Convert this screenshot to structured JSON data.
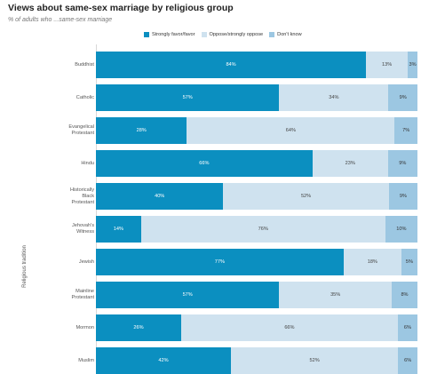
{
  "chart_data": {
    "type": "bar",
    "orientation": "horizontal",
    "stacked": true,
    "title": "Views about same-sex marriage by religious group",
    "subtitle": "% of adults who ...same-sex marriage",
    "ylabel": "Religious tradition",
    "xlim": [
      0,
      100
    ],
    "legend_position": "top",
    "categories": [
      "Buddhist",
      "Catholic",
      "Evangelical Protestant",
      "Hindu",
      "Historically Black Protestant",
      "Jehovah's Witness",
      "Jewish",
      "Mainline Protestant",
      "Mormon",
      "Muslim"
    ],
    "category_lines": [
      [
        "Buddhist"
      ],
      [
        "Catholic"
      ],
      [
        "Evangelical",
        "Protestant"
      ],
      [
        "Hindu"
      ],
      [
        "Historically",
        "Black",
        "Protestant"
      ],
      [
        "Jehovah's",
        "Witness"
      ],
      [
        "Jewish"
      ],
      [
        "Mainline",
        "Protestant"
      ],
      [
        "Mormon"
      ],
      [
        "Muslim"
      ]
    ],
    "series": [
      {
        "name": "Strongly favor/favor",
        "color": "#0b8fc0",
        "values": [
          84,
          57,
          28,
          66,
          40,
          14,
          77,
          57,
          26,
          42
        ]
      },
      {
        "name": "Oppose/strongly oppose",
        "color": "#cfe2ef",
        "values": [
          13,
          34,
          64,
          23,
          52,
          76,
          18,
          35,
          66,
          52
        ]
      },
      {
        "name": "Don't know",
        "color": "#9cc7e2",
        "values": [
          3,
          9,
          7,
          9,
          9,
          10,
          5,
          8,
          6,
          6
        ]
      }
    ]
  }
}
